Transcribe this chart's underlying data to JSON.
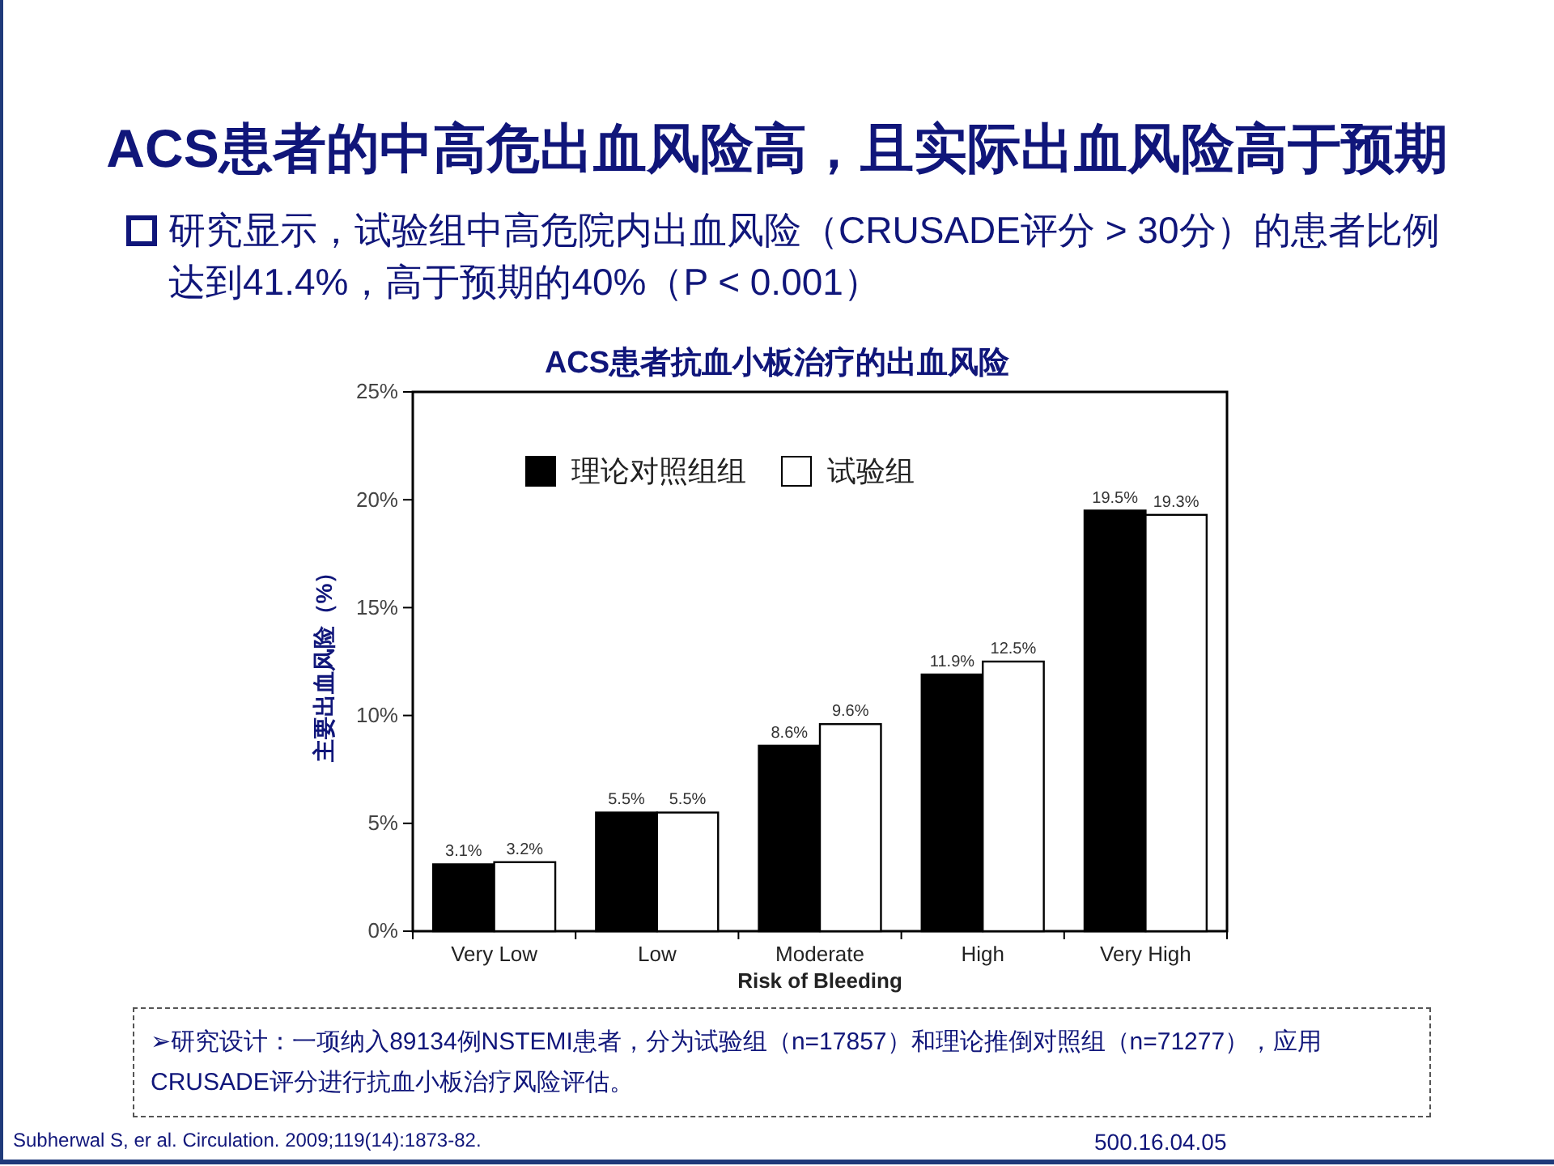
{
  "chart_data": {
    "type": "bar",
    "title": "ACS患者的中高危出血风险高，且实际出血风险高于预期",
    "subtitle": "ACS患者抗血小板治疗的出血风险",
    "xlabel": "Risk of Bleeding",
    "ylabel": "主要出血风险（%）",
    "categories": [
      "Very Low",
      "Low",
      "Moderate",
      "High",
      "Very High"
    ],
    "series": [
      {
        "name": "理论对照组组",
        "color": "#000000",
        "values": [
          3.1,
          5.5,
          8.6,
          11.9,
          19.5
        ],
        "value_labels": [
          "3.1%",
          "5.5%",
          "8.6%",
          "11.9%",
          "19.5%"
        ]
      },
      {
        "name": "试验组",
        "color": "#ffffff",
        "values": [
          3.2,
          5.5,
          9.6,
          12.5,
          19.3
        ],
        "value_labels": [
          "3.2%",
          "5.5%",
          "9.6%",
          "12.5%",
          "19.3%"
        ]
      }
    ],
    "ylim": [
      0,
      25
    ],
    "yticks": [
      {
        "value": 0,
        "label": "0%"
      },
      {
        "value": 5,
        "label": "5%"
      },
      {
        "value": 10,
        "label": "10%"
      },
      {
        "value": 15,
        "label": "15%"
      },
      {
        "value": 20,
        "label": "20%"
      },
      {
        "value": 25,
        "label": "25%"
      }
    ],
    "legend": "top left",
    "grid": false,
    "annotations": [
      "研究显示，试验组中高危院内出血风险（CRUSADE评分 > 30分）的患者比例达到41.4%，高于预期的40%（P < 0.001）",
      "➢研究设计：一项纳入89134例NSTEMI患者，分为试验组（n=17857）和理论推倒对照组（n=71277），应用CRUSADE评分进行抗血小板治疗风险评估。",
      "Subherwal S, er al. Circulation. 2009;119(14):1873-82.",
      "500.16.04.05"
    ]
  }
}
